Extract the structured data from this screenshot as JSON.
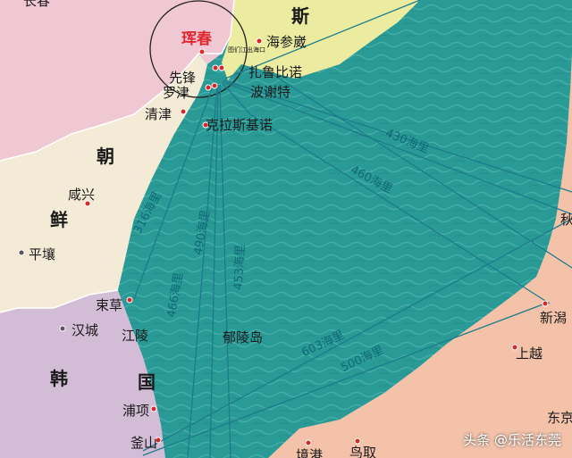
{
  "colors": {
    "sea": "#2a9a96",
    "land_russia": "#ececa0",
    "land_china": "#f0c8d4",
    "land_nkorea": "#f3ebd6",
    "land_skorea": "#d3bcd6",
    "land_japan": "#f3c2a8",
    "route": "#1c7c8c"
  },
  "labels": {
    "changchun": "长春",
    "hunchun": "珲春",
    "xianfeng": "先锋",
    "luojin": "罗津",
    "qingjin": "清津",
    "si": "斯",
    "haishenwai": "海参崴",
    "zhalubinuo": "扎鲁比诺",
    "bosiete": "波谢特",
    "kelasijino": "克拉斯基诺",
    "chao": "朝",
    "xianxing": "咸兴",
    "xian": "鲜",
    "pingrang": "平壤",
    "shucao": "束草",
    "hancheng": "汉城",
    "jiangling": "江陵",
    "han": "韩",
    "guo": "国",
    "puxiang": "浦项",
    "fushan": "釜山",
    "yulingdao": "郁陵岛",
    "xinxie": "新潟",
    "shangyue": "上越",
    "dongjing": "东京",
    "niaoqu": "鸟取",
    "jingtu": "境港",
    "qiu": "秋",
    "inset": "图们江出海口"
  },
  "distances": [
    "316海里",
    "490海里",
    "466海里",
    "453海里",
    "430海里",
    "460海里",
    "603海里",
    "500海里"
  ],
  "watermark": "头条 @乐活东莞"
}
